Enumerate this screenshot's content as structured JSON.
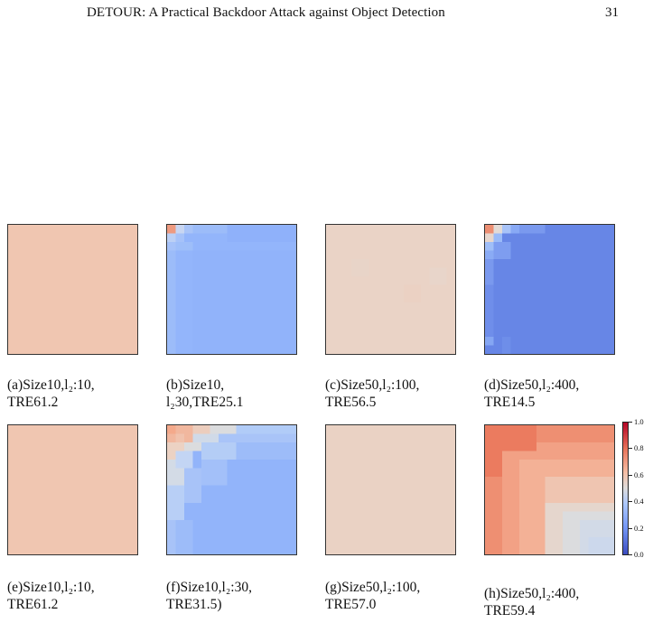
{
  "header": {
    "title": "DETOUR: A Practical Backdoor Attack against Object Detection",
    "page_number": "31"
  },
  "figure": {
    "panels": [
      {
        "id": "a",
        "caption_line1": "(a)Size10,l₂:10,",
        "caption_line2": "TRE61.2",
        "base_color": "#f0c6b1"
      },
      {
        "id": "b",
        "caption_line1": "(b)Size10,",
        "caption_line2": "l₂30,TRE25.1",
        "base_color": "#96b7fa"
      },
      {
        "id": "c",
        "caption_line1": "(c)Size50,l₂:100,",
        "caption_line2": "TRE56.5",
        "base_color": "#ead3c6"
      },
      {
        "id": "d",
        "caption_line1": "(d)Size50,l₂:400,",
        "caption_line2": "TRE14.5",
        "base_color": "#6a8be8"
      },
      {
        "id": "e",
        "caption_line1": "(e)Size10,l₂:10,",
        "caption_line2": "TRE61.2",
        "base_color": "#f0c6b1"
      },
      {
        "id": "f",
        "caption_line1": "(f)Size10,l₂:30,",
        "caption_line2": "TRE31.5)",
        "base_color": "#9ebcf8"
      },
      {
        "id": "g",
        "caption_line1": "(g)Size50,l₂:100,",
        "caption_line2": "TRE57.0",
        "base_color": "#ead2c4"
      },
      {
        "id": "h",
        "caption_line1": "(h)Size50,l₂:400,",
        "caption_line2": "TRE59.4",
        "base_color": "#f2b59a"
      }
    ],
    "colorbar": {
      "colormap": "coolwarm",
      "ticks": [
        "1.0",
        "0.8",
        "0.6",
        "0.4",
        "0.2",
        "0.0"
      ]
    }
  }
}
